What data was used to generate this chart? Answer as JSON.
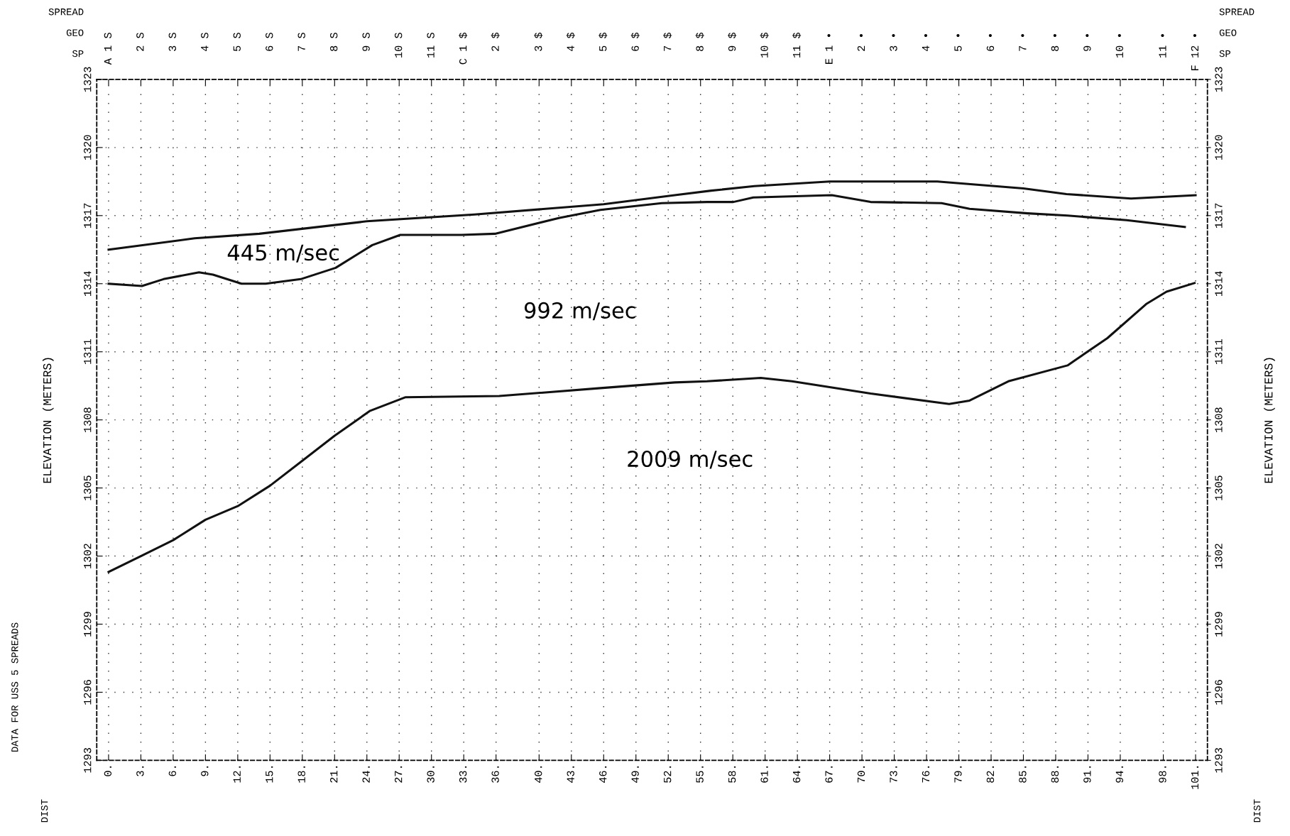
{
  "chart_data": {
    "type": "line",
    "ylabel": "ELEVATION (METERS)",
    "y2label": "ELEVATION (METERS)",
    "xlim": [
      -1.1,
      102.1
    ],
    "ylim": [
      1293,
      1323
    ],
    "y2lim": [
      1293,
      1323
    ],
    "xticks": [
      {
        "value": 0,
        "label": "0."
      },
      {
        "value": 3,
        "label": "3."
      },
      {
        "value": 6,
        "label": "6."
      },
      {
        "value": 9,
        "label": "9."
      },
      {
        "value": 12,
        "label": "12."
      },
      {
        "value": 15,
        "label": "15."
      },
      {
        "value": 18,
        "label": "18."
      },
      {
        "value": 21,
        "label": "21."
      },
      {
        "value": 24,
        "label": "24."
      },
      {
        "value": 27,
        "label": "27."
      },
      {
        "value": 30,
        "label": "30."
      },
      {
        "value": 33,
        "label": "33."
      },
      {
        "value": 36,
        "label": "36."
      },
      {
        "value": 40,
        "label": "40."
      },
      {
        "value": 43,
        "label": "43."
      },
      {
        "value": 46,
        "label": "46."
      },
      {
        "value": 49,
        "label": "49."
      },
      {
        "value": 52,
        "label": "52."
      },
      {
        "value": 55,
        "label": "55."
      },
      {
        "value": 58,
        "label": "58."
      },
      {
        "value": 61,
        "label": "61."
      },
      {
        "value": 64,
        "label": "64."
      },
      {
        "value": 67,
        "label": "67."
      },
      {
        "value": 70,
        "label": "70."
      },
      {
        "value": 73,
        "label": "73."
      },
      {
        "value": 76,
        "label": "76."
      },
      {
        "value": 79,
        "label": "79."
      },
      {
        "value": 82,
        "label": "82."
      },
      {
        "value": 85,
        "label": "85."
      },
      {
        "value": 88,
        "label": "88."
      },
      {
        "value": 91,
        "label": "91."
      },
      {
        "value": 94,
        "label": "94."
      },
      {
        "value": 98,
        "label": "98."
      },
      {
        "value": 101,
        "label": "101."
      }
    ],
    "yticks": [
      1293,
      1296,
      1299,
      1302,
      1305,
      1308,
      1311,
      1314,
      1317,
      1320,
      1323
    ],
    "y2ticks": [
      1293,
      1296,
      1299,
      1302,
      1305,
      1308,
      1311,
      1314,
      1317,
      1320,
      1323
    ],
    "grid": true,
    "marker": "none",
    "line_style": "solid",
    "series": [
      {
        "color": "#111111",
        "x": [
          0,
          8,
          14,
          24,
          34,
          46,
          52.6,
          56,
          60,
          67,
          77,
          85,
          89,
          95,
          101
        ],
        "values": [
          1315.5,
          1316.0,
          1316.2,
          1316.75,
          1317.05,
          1317.5,
          1317.9,
          1318.1,
          1318.3,
          1318.5,
          1318.5,
          1318.2,
          1317.95,
          1317.75,
          1317.9
        ]
      },
      {
        "color": "#111111",
        "x": [
          0,
          3.1,
          5.1,
          8.4,
          9.7,
          12.35,
          14.6,
          17.85,
          21.1,
          24.5,
          27.1,
          32.8,
          35.9,
          41.9,
          45.7,
          51.4,
          55.6,
          58.05,
          59.9,
          67.2,
          70.8,
          77.4,
          80.0,
          85.4,
          89.1,
          94.6,
          100.0
        ],
        "values": [
          1314.0,
          1313.9,
          1314.2,
          1314.5,
          1314.4,
          1314.0,
          1314.0,
          1314.2,
          1314.7,
          1315.7,
          1316.15,
          1316.15,
          1316.2,
          1316.9,
          1317.25,
          1317.55,
          1317.6,
          1317.6,
          1317.8,
          1317.9,
          1317.6,
          1317.55,
          1317.3,
          1317.1,
          1317.0,
          1316.8,
          1316.5
        ]
      },
      {
        "color": "#111111",
        "x": [
          0,
          3,
          6,
          9,
          12,
          15,
          18,
          21,
          24.3,
          27.6,
          36.3,
          45.7,
          52.6,
          55.6,
          60.6,
          63.5,
          70.8,
          78.1,
          80.0,
          83.6,
          89.1,
          92.8,
          96.4,
          98.3,
          100.9
        ],
        "values": [
          1301.3,
          1302.0,
          1302.7,
          1303.6,
          1304.2,
          1305.1,
          1306.2,
          1307.3,
          1308.4,
          1309.0,
          1309.05,
          1309.4,
          1309.65,
          1309.7,
          1309.85,
          1309.7,
          1309.16,
          1308.7,
          1308.85,
          1309.7,
          1310.4,
          1311.6,
          1313.1,
          1313.65,
          1314.03
        ]
      }
    ],
    "annotations": [
      "445 m/sec",
      "992 m/sec",
      "2009 m/sec",
      "SPREAD",
      "GEO",
      "SP",
      "DIST",
      "DATA FOR USS 5 SPREADS",
      "A 1 S",
      "2 S",
      "3 S",
      "4 S",
      "5 S",
      "6 S",
      "7 S",
      "8 S",
      "9 S",
      "10 S",
      "11 S",
      "C 1 $",
      "2 $",
      "3 $",
      "4 $",
      "5 $",
      "6 $",
      "7 $",
      "8 $",
      "9 $",
      "10 $",
      "11 $",
      "E 1 •",
      "2 •",
      "3 •",
      "4 •",
      "5 •",
      "6 •",
      "7 •",
      "8 •",
      "9 •",
      "10 •",
      "11 •",
      "F 12 •"
    ]
  }
}
